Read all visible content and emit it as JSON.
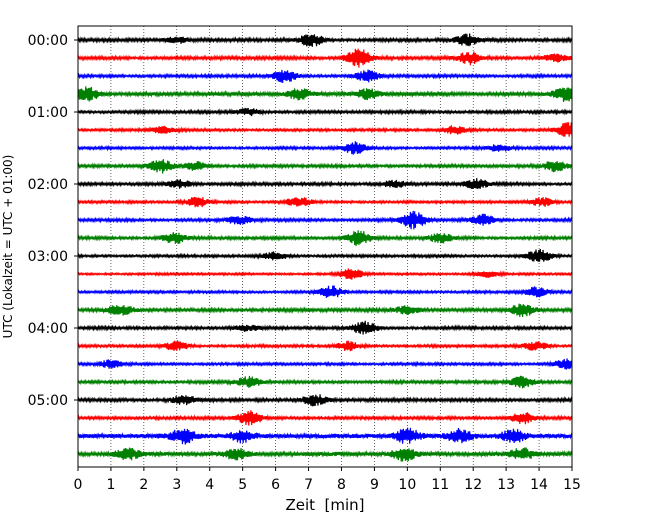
{
  "chart_data": {
    "type": "line",
    "title": "",
    "xlabel": "Zeit  [min]",
    "ylabel": "UTC (Lokalzeit = UTC + 01:00)",
    "xlim": [
      0,
      15
    ],
    "x_ticks": [
      0,
      1,
      2,
      3,
      4,
      5,
      6,
      7,
      8,
      9,
      10,
      11,
      12,
      13,
      14,
      15
    ],
    "y_tick_labels": [
      "00:00",
      "01:00",
      "02:00",
      "03:00",
      "04:00",
      "05:00"
    ],
    "traces_per_hour": 4,
    "minutes_per_trace": 15,
    "grid": "vertical-dotted",
    "series": [
      {
        "start": "00:00",
        "color": "#000000",
        "amp": 0.9,
        "events": [
          [
            7.1,
            1.6
          ],
          [
            11.8,
            1.4
          ],
          [
            3.0,
            1.0
          ]
        ]
      },
      {
        "start": "00:15",
        "color": "#ff0000",
        "amp": 0.9,
        "events": [
          [
            8.5,
            2.8
          ],
          [
            11.9,
            1.6
          ],
          [
            14.5,
            1.0
          ]
        ]
      },
      {
        "start": "00:30",
        "color": "#0000ff",
        "amp": 0.8,
        "events": [
          [
            6.3,
            1.8
          ],
          [
            8.8,
            1.5
          ]
        ]
      },
      {
        "start": "00:45",
        "color": "#008000",
        "amp": 1.0,
        "events": [
          [
            0.3,
            2.0
          ],
          [
            6.7,
            1.8
          ],
          [
            8.8,
            1.4
          ],
          [
            14.8,
            2.0
          ]
        ]
      },
      {
        "start": "01:00",
        "color": "#000000",
        "amp": 0.8,
        "events": [
          [
            5.2,
            1.0
          ]
        ]
      },
      {
        "start": "01:15",
        "color": "#ff0000",
        "amp": 0.7,
        "events": [
          [
            2.6,
            1.0
          ],
          [
            11.4,
            1.3
          ],
          [
            14.9,
            2.0
          ]
        ]
      },
      {
        "start": "01:30",
        "color": "#0000ff",
        "amp": 0.7,
        "events": [
          [
            8.4,
            1.6
          ],
          [
            12.8,
            1.0
          ]
        ]
      },
      {
        "start": "01:45",
        "color": "#008000",
        "amp": 0.8,
        "events": [
          [
            2.5,
            1.8
          ],
          [
            3.6,
            1.3
          ],
          [
            14.5,
            1.6
          ]
        ]
      },
      {
        "start": "02:00",
        "color": "#000000",
        "amp": 0.8,
        "events": [
          [
            3.1,
            1.2
          ],
          [
            9.6,
            1.2
          ],
          [
            12.1,
            1.4
          ]
        ]
      },
      {
        "start": "02:15",
        "color": "#ff0000",
        "amp": 0.7,
        "events": [
          [
            3.6,
            1.6
          ],
          [
            6.7,
            1.4
          ],
          [
            14.1,
            1.5
          ]
        ]
      },
      {
        "start": "02:30",
        "color": "#0000ff",
        "amp": 0.8,
        "events": [
          [
            10.2,
            2.4
          ],
          [
            12.3,
            1.4
          ],
          [
            4.9,
            1.2
          ]
        ]
      },
      {
        "start": "02:45",
        "color": "#008000",
        "amp": 0.8,
        "events": [
          [
            2.9,
            1.6
          ],
          [
            8.5,
            2.0
          ],
          [
            11.0,
            1.2
          ]
        ]
      },
      {
        "start": "03:00",
        "color": "#000000",
        "amp": 0.7,
        "events": [
          [
            14.0,
            1.8
          ],
          [
            6.0,
            1.2
          ]
        ]
      },
      {
        "start": "03:15",
        "color": "#ff0000",
        "amp": 0.6,
        "events": [
          [
            8.3,
            1.4
          ],
          [
            12.4,
            1.0
          ]
        ]
      },
      {
        "start": "03:30",
        "color": "#0000ff",
        "amp": 0.7,
        "events": [
          [
            7.7,
            1.6
          ],
          [
            13.9,
            1.4
          ]
        ]
      },
      {
        "start": "03:45",
        "color": "#008000",
        "amp": 0.9,
        "events": [
          [
            1.3,
            1.4
          ],
          [
            10.0,
            1.3
          ],
          [
            13.5,
            1.8
          ]
        ]
      },
      {
        "start": "04:00",
        "color": "#000000",
        "amp": 0.8,
        "events": [
          [
            8.7,
            1.8
          ],
          [
            5.1,
            1.0
          ]
        ]
      },
      {
        "start": "04:15",
        "color": "#ff0000",
        "amp": 0.7,
        "events": [
          [
            3.0,
            1.4
          ],
          [
            8.2,
            1.2
          ],
          [
            13.9,
            1.2
          ]
        ]
      },
      {
        "start": "04:30",
        "color": "#0000ff",
        "amp": 0.7,
        "events": [
          [
            1.0,
            1.2
          ],
          [
            14.8,
            1.6
          ]
        ]
      },
      {
        "start": "04:45",
        "color": "#008000",
        "amp": 0.8,
        "events": [
          [
            5.2,
            1.4
          ],
          [
            13.5,
            1.8
          ]
        ]
      },
      {
        "start": "05:00",
        "color": "#000000",
        "amp": 0.9,
        "events": [
          [
            7.2,
            1.8
          ],
          [
            3.2,
            1.2
          ]
        ]
      },
      {
        "start": "05:15",
        "color": "#ff0000",
        "amp": 0.8,
        "events": [
          [
            5.2,
            2.0
          ],
          [
            13.5,
            1.6
          ]
        ]
      },
      {
        "start": "05:30",
        "color": "#0000ff",
        "amp": 1.3,
        "events": [
          [
            3.2,
            1.8
          ],
          [
            5.0,
            1.6
          ],
          [
            10.0,
            2.0
          ],
          [
            11.6,
            2.2
          ],
          [
            13.2,
            1.6
          ]
        ]
      },
      {
        "start": "05:45",
        "color": "#008000",
        "amp": 1.1,
        "events": [
          [
            1.5,
            1.6
          ],
          [
            4.8,
            1.5
          ],
          [
            9.9,
            1.8
          ],
          [
            13.5,
            1.5
          ]
        ]
      }
    ]
  }
}
